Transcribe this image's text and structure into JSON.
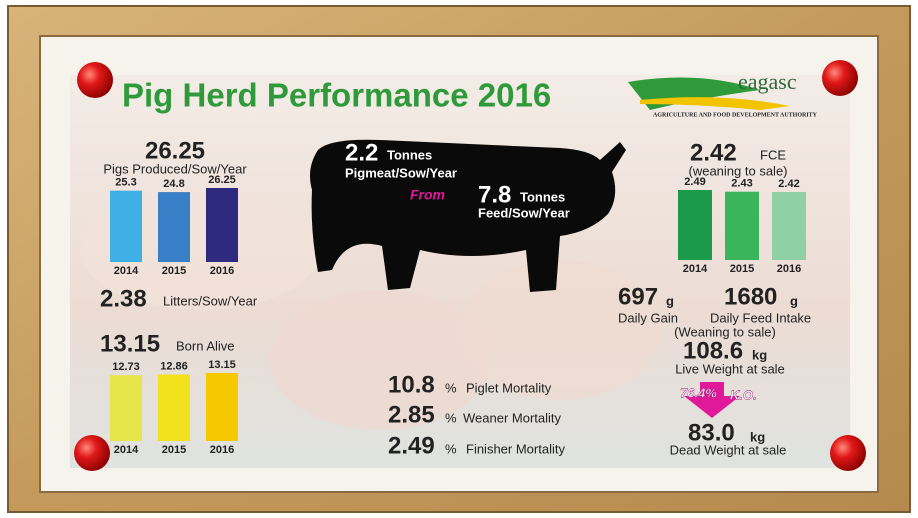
{
  "header": {
    "title": "Pig Herd Performance 2016",
    "logo": "eagasc",
    "logo_subtitle": "AGRICULTURE AND FOOD DEVELOPMENT AUTHORITY"
  },
  "pigs_produced": {
    "value": "26.25",
    "label": "Pigs Produced/Sow/Year",
    "chart": {
      "categories": [
        "2014",
        "2015",
        "2016"
      ],
      "values": [
        25.3,
        24.8,
        26.25
      ],
      "colors": [
        "#3fb0e6",
        "#3a80c8",
        "#2e2a80"
      ]
    }
  },
  "litters": {
    "value": "2.38",
    "label": "Litters/Sow/Year"
  },
  "born_alive": {
    "value": "13.15",
    "label": "Born Alive",
    "chart": {
      "categories": [
        "2014",
        "2015",
        "2016"
      ],
      "values": [
        12.73,
        12.86,
        13.15
      ],
      "colors": [
        "#e6e64a",
        "#f2e21e",
        "#f6c800"
      ]
    }
  },
  "pigmeat": {
    "value": "2.2",
    "unit": "Tonnes",
    "label": "Pigmeat/Sow/Year"
  },
  "from": "From",
  "feed": {
    "value": "7.8",
    "unit": "Tonnes",
    "label": "Feed/Sow/Year"
  },
  "mortality": [
    {
      "value": "10.8",
      "unit": "%",
      "label": "Piglet Mortality"
    },
    {
      "value": "2.85",
      "unit": "%",
      "label": "Weaner Mortality"
    },
    {
      "value": "2.49",
      "unit": "%",
      "label": "Finisher Mortality"
    }
  ],
  "fce": {
    "value": "2.42",
    "unit": "FCE",
    "note": "(weaning to sale)",
    "chart": {
      "categories": [
        "2014",
        "2015",
        "2016"
      ],
      "values": [
        2.49,
        2.43,
        2.42
      ],
      "colors": [
        "#1a9a4a",
        "#3ab55a",
        "#8fd0a4"
      ]
    }
  },
  "daily_gain": {
    "value": "697",
    "unit": "g",
    "label": "Daily Gain"
  },
  "daily_feed": {
    "value": "1680",
    "unit": "g",
    "label": "Daily Feed Intake",
    "note": "(Weaning to sale)"
  },
  "live_weight": {
    "value": "108.6",
    "unit": "kg",
    "label": "Live Weight at sale"
  },
  "kill_out": {
    "value": "76.4%",
    "label": "K.O."
  },
  "dead_weight": {
    "value": "83.0",
    "unit": "kg",
    "label": "Dead Weight at sale"
  }
}
